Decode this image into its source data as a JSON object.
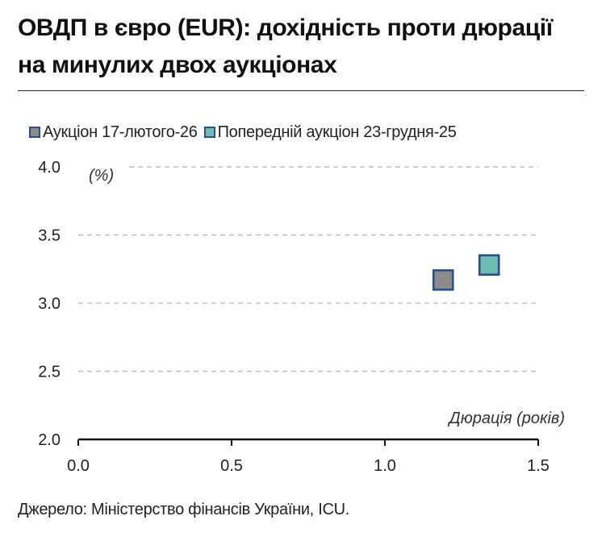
{
  "title_line1": "ОВДП в євро (EUR): дохідність проти дюрації",
  "title_line2": "на минулих двох аукціонах",
  "source": "Джерело: Міністерство фінансів України, ICU.",
  "chart_data": {
    "type": "scatter",
    "title": "ОВДП в євро (EUR): дохідність проти дюрації на минулих двох аукціонах",
    "ylabel": "(%)",
    "xlabel": "Дюрація (років)",
    "xlim": [
      0.0,
      1.5
    ],
    "ylim": [
      2.0,
      4.0
    ],
    "x_ticks": [
      "0.0",
      "0.5",
      "1.0",
      "1.5"
    ],
    "y_ticks": [
      "2.0",
      "2.5",
      "3.0",
      "3.5",
      "4.0"
    ],
    "grid": "horizontal dashed",
    "legend_position": "top",
    "series": [
      {
        "name": "Аукціон 17-лютого-26",
        "color": "#8c8c8c",
        "edge_color": "#2b4e8c",
        "marker": "square",
        "points": [
          {
            "x": 1.19,
            "y": 3.17
          }
        ]
      },
      {
        "name": "Попередній аукціон 23-грудня-25",
        "color": "#6fbcb4",
        "edge_color": "#2b4e8c",
        "marker": "square",
        "points": [
          {
            "x": 1.34,
            "y": 3.28
          }
        ]
      }
    ]
  }
}
